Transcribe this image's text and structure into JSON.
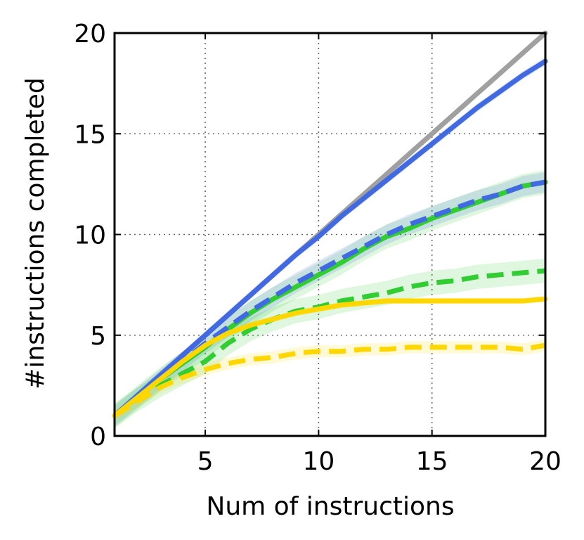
{
  "chart_data": {
    "type": "line",
    "title": "",
    "xlabel": "Num of instructions",
    "ylabel": "#instructions completed",
    "xlim": [
      1,
      20
    ],
    "ylim": [
      0,
      20
    ],
    "xticks": [
      5,
      10,
      15,
      20
    ],
    "yticks": [
      0,
      5,
      10,
      15,
      20
    ],
    "xtick_labels": [
      "5",
      "10",
      "15",
      "20"
    ],
    "ytick_labels": [
      "0",
      "5",
      "10",
      "15",
      "20"
    ],
    "grid": true,
    "x": [
      1,
      2,
      3,
      4,
      5,
      6,
      7,
      8,
      9,
      10,
      11,
      12,
      13,
      14,
      15,
      16,
      17,
      18,
      19,
      20
    ],
    "series": [
      {
        "name": "reference",
        "color": "#a0a0a0",
        "style": "solid",
        "values": [
          1,
          2,
          3,
          4,
          5,
          6,
          7,
          8,
          9,
          10,
          11,
          12,
          13,
          14,
          15,
          16,
          17,
          18,
          19,
          20
        ]
      },
      {
        "name": "blue-solid",
        "color": "#4169e1",
        "style": "solid",
        "values": [
          1,
          2,
          3,
          4,
          5,
          6,
          7,
          8,
          9,
          9.9,
          10.9,
          11.8,
          12.7,
          13.6,
          14.5,
          15.4,
          16.3,
          17.1,
          17.9,
          18.6
        ],
        "band": 0.2
      },
      {
        "name": "green-solid",
        "color": "#32cd32",
        "style": "solid",
        "values": [
          1,
          1.9,
          2.8,
          3.6,
          4.4,
          5.3,
          6.1,
          6.8,
          7.4,
          8,
          8.6,
          9.3,
          9.9,
          10.3,
          10.8,
          11.2,
          11.6,
          12,
          12.4,
          12.6
        ],
        "band": 0.6
      },
      {
        "name": "blue-dashed",
        "color": "#4169e1",
        "style": "dashed",
        "values": [
          1,
          1.9,
          2.8,
          3.7,
          4.6,
          5.4,
          6.2,
          6.9,
          7.6,
          8.2,
          8.8,
          9.4,
          10,
          10.5,
          10.9,
          11.3,
          11.7,
          12,
          12.4,
          12.6
        ],
        "band": 0.5
      },
      {
        "name": "green-dashed",
        "color": "#32cd32",
        "style": "dashed",
        "values": [
          1,
          1.8,
          2.5,
          3.1,
          3.7,
          4.6,
          5.3,
          5.8,
          6.2,
          6.4,
          6.7,
          6.9,
          7.1,
          7.4,
          7.6,
          7.7,
          7.9,
          8,
          8.1,
          8.2
        ],
        "band": 0.6
      },
      {
        "name": "yellow-solid",
        "color": "#ffd700",
        "style": "solid",
        "values": [
          1,
          1.9,
          2.8,
          3.7,
          4.5,
          5.1,
          5.5,
          5.8,
          6.1,
          6.3,
          6.5,
          6.6,
          6.7,
          6.7,
          6.7,
          6.7,
          6.7,
          6.7,
          6.7,
          6.8
        ],
        "band": 0.15
      },
      {
        "name": "yellow-dashed",
        "color": "#ffd700",
        "style": "dashed",
        "values": [
          1,
          1.7,
          2.4,
          2.9,
          3.3,
          3.6,
          3.8,
          3.9,
          4.1,
          4.2,
          4.2,
          4.3,
          4.3,
          4.4,
          4.4,
          4.4,
          4.4,
          4.4,
          4.3,
          4.5
        ],
        "band": 0.3
      }
    ]
  }
}
